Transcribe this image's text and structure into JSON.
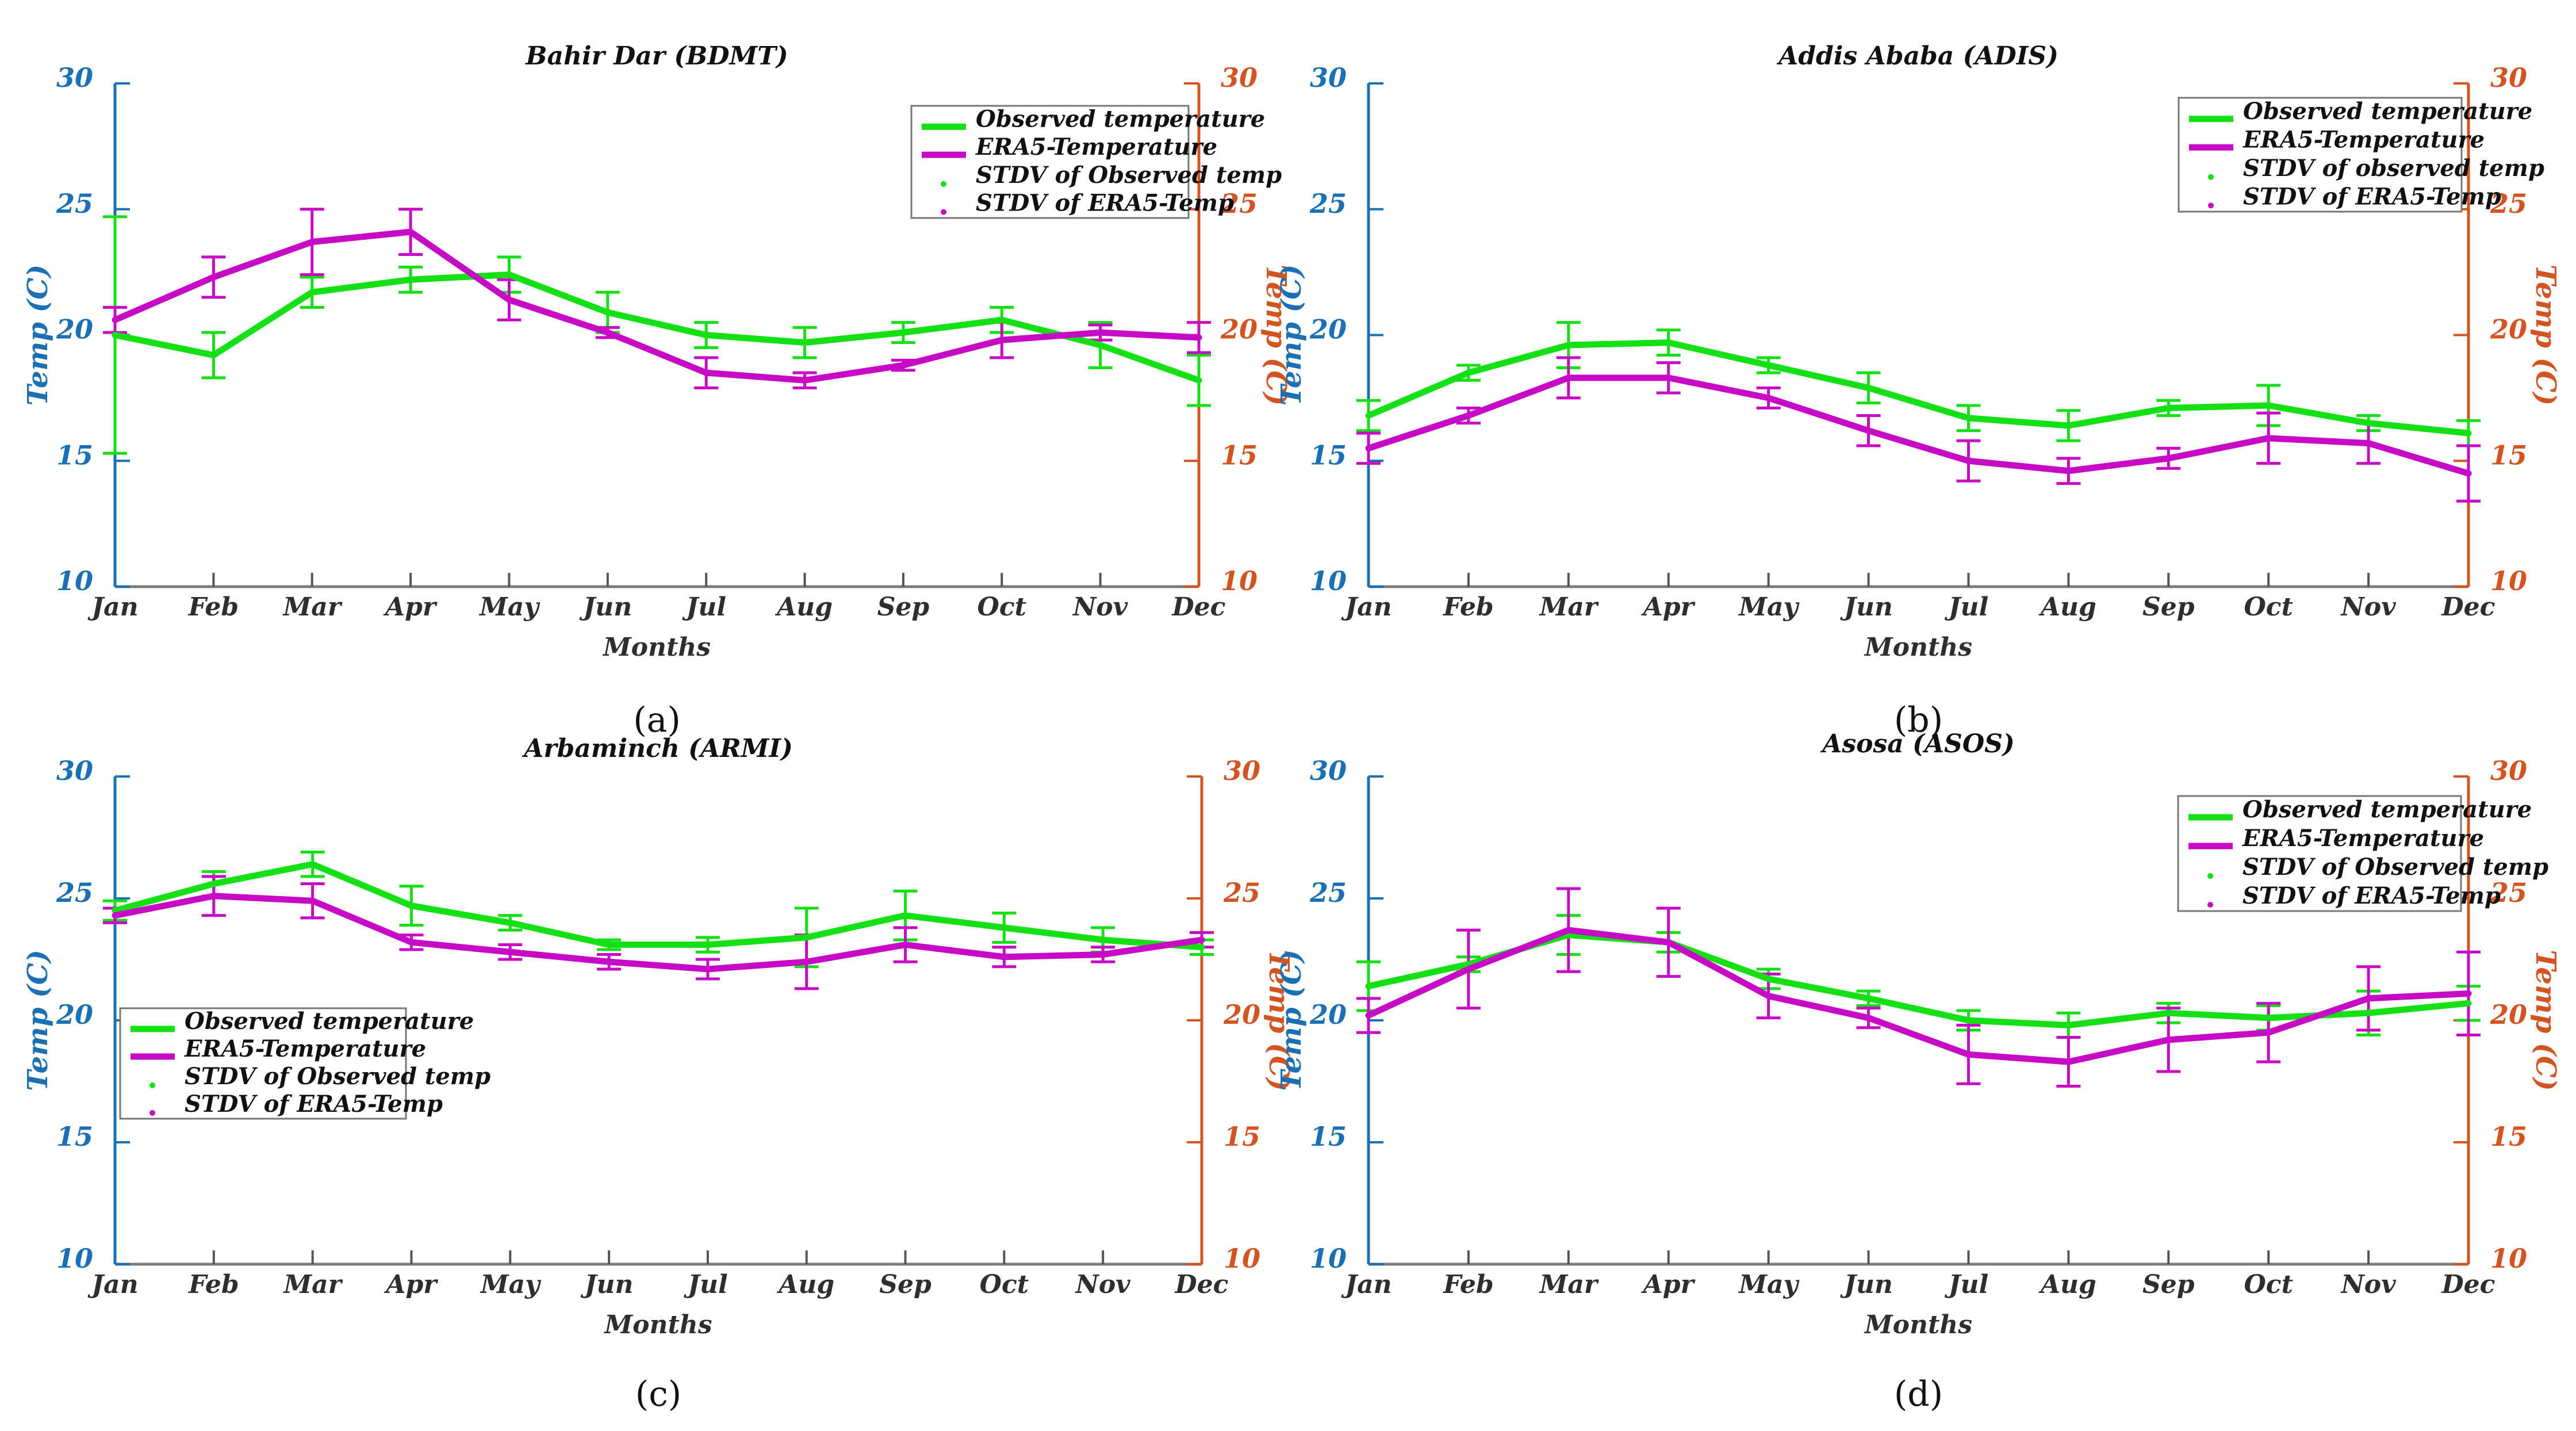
{
  "figure": {
    "description": "Monthly mean temperature comparison of observed station data and ERA5 reanalysis with standard deviation error bars at four Ethiopian stations",
    "background": "#ffffff"
  },
  "colors": {
    "observed": "#15e015",
    "era5": "#c60ac6",
    "axis_left": "#1a6fb5",
    "axis_right": "#d35420",
    "x_axis": "#7d7d7d",
    "text": "#111111",
    "month_label": "#2e2e2e",
    "legend_border": "#777777"
  },
  "chart_data": [
    {
      "id": "a",
      "type": "line",
      "title": "Bahir Dar (BDMT)",
      "caption": "(a)",
      "x_label": "Months",
      "y_label_left": "Temp (C)",
      "y_label_right": "Temp (C)",
      "ylim": [
        10,
        30
      ],
      "y_tick_labels": [
        "10",
        "15",
        "20",
        "25",
        "30"
      ],
      "months": [
        "Jan",
        "Feb",
        "Mar",
        "Apr",
        "May",
        "Jun",
        "Jul",
        "Aug",
        "Sep",
        "Oct",
        "Nov",
        "Dec"
      ],
      "series": [
        {
          "name": "Observed temperature",
          "color": "#15e015",
          "values": [
            20.0,
            19.2,
            21.7,
            22.2,
            22.4,
            20.9,
            20.0,
            19.7,
            20.1,
            20.6,
            19.6,
            18.2
          ],
          "stdv": [
            4.7,
            0.9,
            0.6,
            0.5,
            0.7,
            0.8,
            0.5,
            0.6,
            0.4,
            0.5,
            0.9,
            1.0
          ]
        },
        {
          "name": "ERA5-Temperature",
          "color": "#c60ac6",
          "values": [
            20.6,
            22.3,
            23.7,
            24.1,
            21.4,
            20.1,
            18.5,
            18.2,
            18.8,
            19.8,
            20.1,
            19.9
          ],
          "stdv": [
            0.5,
            0.8,
            1.3,
            0.9,
            0.8,
            0.2,
            0.6,
            0.3,
            0.2,
            0.7,
            0.3,
            0.6
          ]
        }
      ],
      "legend": {
        "position": "top-right",
        "entries": [
          {
            "label": "Observed temperature",
            "marker": "line",
            "color": "#15e015"
          },
          {
            "label": "ERA5-Temperature",
            "marker": "line",
            "color": "#c60ac6"
          },
          {
            "label": "STDV of Observed temp",
            "marker": "dot",
            "color": "#15e015"
          },
          {
            "label": "STDV of ERA5-Temp",
            "marker": "dot",
            "color": "#c60ac6"
          }
        ]
      }
    },
    {
      "id": "b",
      "type": "line",
      "title": "Addis Ababa (ADIS)",
      "caption": "(b)",
      "x_label": "Months",
      "y_label_left": "Temp (C)",
      "y_label_right": "Temp (C)",
      "ylim": [
        10,
        30
      ],
      "y_tick_labels": [
        "10",
        "15",
        "20",
        "25",
        "30"
      ],
      "months": [
        "Jan",
        "Feb",
        "Mar",
        "Apr",
        "May",
        "Jun",
        "Jul",
        "Aug",
        "Sep",
        "Oct",
        "Nov",
        "Dec"
      ],
      "series": [
        {
          "name": "Observed temperature",
          "color": "#15e015",
          "values": [
            16.8,
            18.5,
            19.6,
            19.7,
            18.8,
            17.9,
            16.7,
            16.4,
            17.1,
            17.2,
            16.5,
            16.1
          ],
          "stdv": [
            0.6,
            0.3,
            0.9,
            0.5,
            0.3,
            0.6,
            0.5,
            0.6,
            0.3,
            0.8,
            0.3,
            0.5
          ]
        },
        {
          "name": "ERA5-Temperature",
          "color": "#c60ac6",
          "values": [
            15.5,
            16.8,
            18.3,
            18.3,
            17.5,
            16.2,
            15.0,
            14.6,
            15.1,
            15.9,
            15.7,
            14.5
          ],
          "stdv": [
            0.6,
            0.3,
            0.8,
            0.6,
            0.4,
            0.6,
            0.8,
            0.5,
            0.4,
            1.0,
            0.8,
            1.1
          ]
        }
      ],
      "legend": {
        "position": "top-right",
        "entries": [
          {
            "label": "Observed temperature",
            "marker": "line",
            "color": "#15e015"
          },
          {
            "label": "ERA5-Temperature",
            "marker": "line",
            "color": "#c60ac6"
          },
          {
            "label": "STDV of observed temp",
            "marker": "dot",
            "color": "#15e015"
          },
          {
            "label": "STDV of ERA5-Temp",
            "marker": "dot",
            "color": "#c60ac6"
          }
        ]
      }
    },
    {
      "id": "c",
      "type": "line",
      "title": "Arbaminch (ARMI)",
      "caption": "(c)",
      "x_label": "Months",
      "y_label_left": "Temp (C)",
      "y_label_right": "Temp (C)",
      "ylim": [
        10,
        30
      ],
      "y_tick_labels": [
        "10",
        "15",
        "20",
        "25",
        "30"
      ],
      "months": [
        "Jan",
        "Feb",
        "Mar",
        "Apr",
        "May",
        "Jun",
        "Jul",
        "Aug",
        "Sep",
        "Oct",
        "Nov",
        "Dec"
      ],
      "series": [
        {
          "name": "Observed temperature",
          "color": "#15e015",
          "values": [
            24.5,
            25.6,
            26.4,
            24.7,
            24.0,
            23.1,
            23.1,
            23.4,
            24.3,
            23.8,
            23.3,
            23.0
          ],
          "stdv": [
            0.4,
            0.5,
            0.5,
            0.8,
            0.3,
            0.2,
            0.3,
            1.2,
            1.0,
            0.6,
            0.5,
            0.3
          ]
        },
        {
          "name": "ERA5-Temperature",
          "color": "#c60ac6",
          "values": [
            24.3,
            25.1,
            24.9,
            23.2,
            22.8,
            22.4,
            22.1,
            22.4,
            23.1,
            22.6,
            22.7,
            23.3
          ],
          "stdv": [
            0.3,
            0.8,
            0.7,
            0.3,
            0.3,
            0.3,
            0.4,
            1.1,
            0.7,
            0.4,
            0.3,
            0.3
          ]
        }
      ],
      "legend": {
        "position": "middle-left",
        "entries": [
          {
            "label": "Observed temperature",
            "marker": "line",
            "color": "#15e015"
          },
          {
            "label": "ERA5-Temperature",
            "marker": "line",
            "color": "#c60ac6"
          },
          {
            "label": "STDV of Observed temp",
            "marker": "dot",
            "color": "#15e015"
          },
          {
            "label": "STDV of ERA5-Temp",
            "marker": "dot",
            "color": "#c60ac6"
          }
        ]
      }
    },
    {
      "id": "d",
      "type": "line",
      "title": "Asosa (ASOS)",
      "caption": "(d)",
      "x_label": "Months",
      "y_label_left": "Temp (C)",
      "y_label_right": "Temp (C)",
      "ylim": [
        10,
        30
      ],
      "y_tick_labels": [
        "10",
        "15",
        "20",
        "25",
        "30"
      ],
      "months": [
        "Jan",
        "Feb",
        "Mar",
        "Apr",
        "May",
        "Jun",
        "Jul",
        "Aug",
        "Sep",
        "Oct",
        "Nov",
        "Dec"
      ],
      "series": [
        {
          "name": "Observed temperature",
          "color": "#15e015",
          "values": [
            21.4,
            22.3,
            23.5,
            23.2,
            21.7,
            20.9,
            20.0,
            19.8,
            20.3,
            20.1,
            20.3,
            20.7
          ],
          "stdv": [
            1.0,
            0.3,
            0.8,
            0.4,
            0.4,
            0.3,
            0.4,
            0.5,
            0.4,
            0.5,
            0.9,
            0.7
          ]
        },
        {
          "name": "ERA5-Temperature",
          "color": "#c60ac6",
          "values": [
            20.2,
            22.1,
            23.7,
            23.2,
            21.0,
            20.1,
            18.6,
            18.3,
            19.2,
            19.5,
            20.9,
            21.1
          ],
          "stdv": [
            0.7,
            1.6,
            1.7,
            1.4,
            0.9,
            0.4,
            1.2,
            1.0,
            1.3,
            1.2,
            1.3,
            1.7
          ]
        }
      ],
      "legend": {
        "position": "top-right",
        "entries": [
          {
            "label": "Observed temperature",
            "marker": "line",
            "color": "#15e015"
          },
          {
            "label": "ERA5-Temperature",
            "marker": "line",
            "color": "#c60ac6"
          },
          {
            "label": "STDV of Observed temp",
            "marker": "dot",
            "color": "#15e015"
          },
          {
            "label": "STDV of ERA5-Temp",
            "marker": "dot",
            "color": "#c60ac6"
          }
        ]
      }
    }
  ]
}
